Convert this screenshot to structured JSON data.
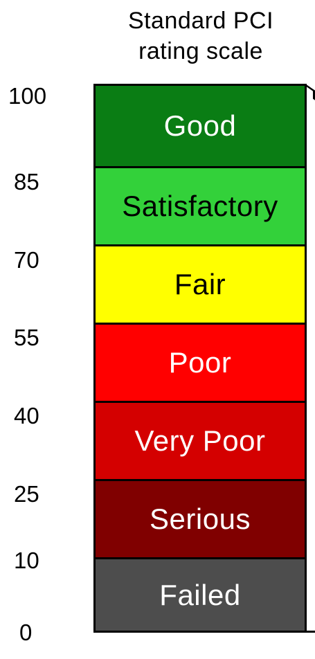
{
  "title": {
    "line1": "Standard PCI",
    "line2": "rating scale"
  },
  "scale": {
    "ticks": [
      "100",
      "85",
      "70",
      "55",
      "40",
      "25",
      "10",
      "0"
    ]
  },
  "bands": [
    {
      "label": "Good",
      "color": "#0a7d14",
      "text_color": "#ffffff"
    },
    {
      "label": "Satisfactory",
      "color": "#33d13a",
      "text_color": "#000000"
    },
    {
      "label": "Fair",
      "color": "#ffff00",
      "text_color": "#000000"
    },
    {
      "label": "Poor",
      "color": "#ff0000",
      "text_color": "#ffffff"
    },
    {
      "label": "Very Poor",
      "color": "#d40000",
      "text_color": "#ffffff"
    },
    {
      "label": "Serious",
      "color": "#800000",
      "text_color": "#ffffff"
    },
    {
      "label": "Failed",
      "color": "#4d4d4d",
      "text_color": "#ffffff"
    }
  ]
}
